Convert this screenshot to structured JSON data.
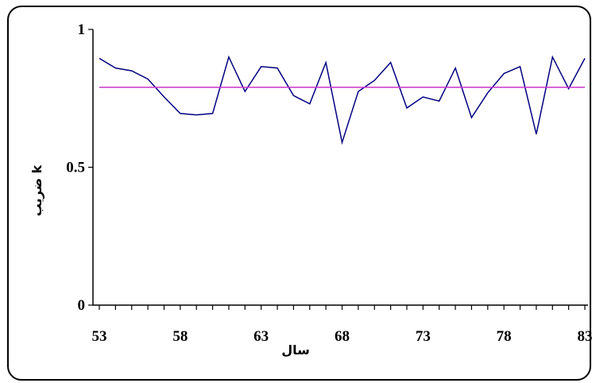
{
  "chart_data": {
    "type": "line",
    "xlabel": "سال",
    "ylabel": "ضریب k",
    "xlim": [
      53,
      83
    ],
    "ylim": [
      0,
      1
    ],
    "x_ticks": [
      53,
      58,
      63,
      68,
      73,
      78,
      83
    ],
    "y_ticks": [
      0,
      0.5,
      1
    ],
    "y_tick_labels": [
      "0",
      "0.5",
      "1"
    ],
    "grid": false,
    "legend": "none",
    "x": [
      53,
      54,
      55,
      56,
      57,
      58,
      59,
      60,
      61,
      62,
      63,
      64,
      65,
      66,
      67,
      68,
      69,
      70,
      71,
      72,
      73,
      74,
      75,
      76,
      77,
      78,
      79,
      80,
      81,
      82,
      83
    ],
    "series": [
      {
        "values": [
          0.895,
          0.86,
          0.85,
          0.82,
          0.755,
          0.695,
          0.69,
          0.695,
          0.9,
          0.775,
          0.865,
          0.86,
          0.76,
          0.73,
          0.88,
          0.59,
          0.775,
          0.815,
          0.88,
          0.715,
          0.755,
          0.74,
          0.86,
          0.68,
          0.77,
          0.84,
          0.865,
          0.62,
          0.9,
          0.785,
          0.895
        ],
        "color": "#000080"
      },
      {
        "values": [
          0.79,
          0.79
        ],
        "x": [
          53,
          83
        ],
        "color": "#cc33cc"
      }
    ]
  }
}
